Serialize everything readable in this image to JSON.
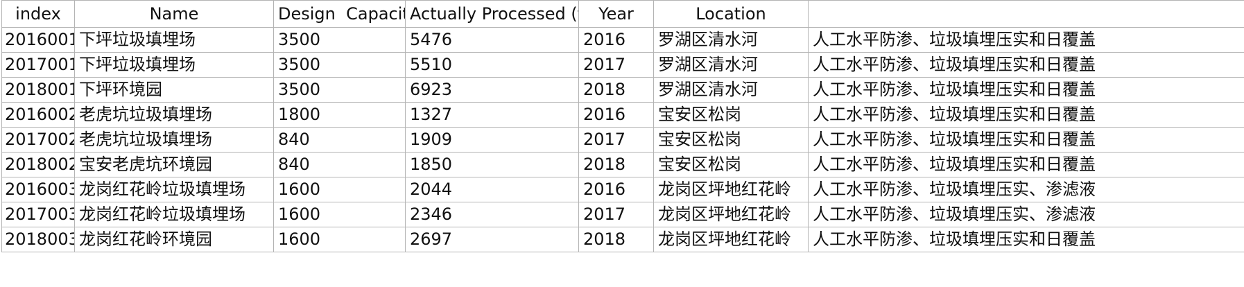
{
  "table": {
    "headers": [
      "index",
      "Name",
      "Design  Capacity",
      "Actually Processed (to",
      "Year",
      "Location",
      ""
    ],
    "rows": [
      [
        "2016001",
        "下坪垃圾填埋场",
        "3500",
        "5476",
        "2016",
        "罗湖区清水河",
        "人工水平防渗、垃圾填埋压实和日覆盖"
      ],
      [
        "2017001",
        "下坪垃圾填埋场",
        "3500",
        "5510",
        "2017",
        "罗湖区清水河",
        "人工水平防渗、垃圾填埋压实和日覆盖"
      ],
      [
        "2018001",
        "下坪环境园",
        "3500",
        "6923",
        "2018",
        "罗湖区清水河",
        "人工水平防渗、垃圾填埋压实和日覆盖"
      ],
      [
        "2016002",
        "老虎坑垃圾填埋场",
        "1800",
        "1327",
        "2016",
        "宝安区松岗",
        "人工水平防渗、垃圾填埋压实和日覆盖"
      ],
      [
        "2017002",
        "老虎坑垃圾填埋场",
        "840",
        "1909",
        "2017",
        "宝安区松岗",
        "人工水平防渗、垃圾填埋压实和日覆盖"
      ],
      [
        "2018002",
        "宝安老虎坑环境园",
        "840",
        "1850",
        "2018",
        "宝安区松岗",
        "人工水平防渗、垃圾填埋压实和日覆盖"
      ],
      [
        "2016003",
        "龙岗红花岭垃圾填埋场",
        "1600",
        "2044",
        "2016",
        "龙岗区坪地红花岭",
        "人工水平防渗、垃圾填埋压实、渗滤液"
      ],
      [
        "2017003",
        "龙岗红花岭垃圾填埋场",
        "1600",
        "2346",
        "2017",
        "龙岗区坪地红花岭",
        "人工水平防渗、垃圾填埋压实、渗滤液"
      ],
      [
        "2018003",
        "龙岗红花岭环境园",
        "1600",
        "2697",
        "2018",
        "龙岗区坪地红花岭",
        "人工水平防渗、垃圾填埋压实和日覆盖"
      ]
    ]
  }
}
